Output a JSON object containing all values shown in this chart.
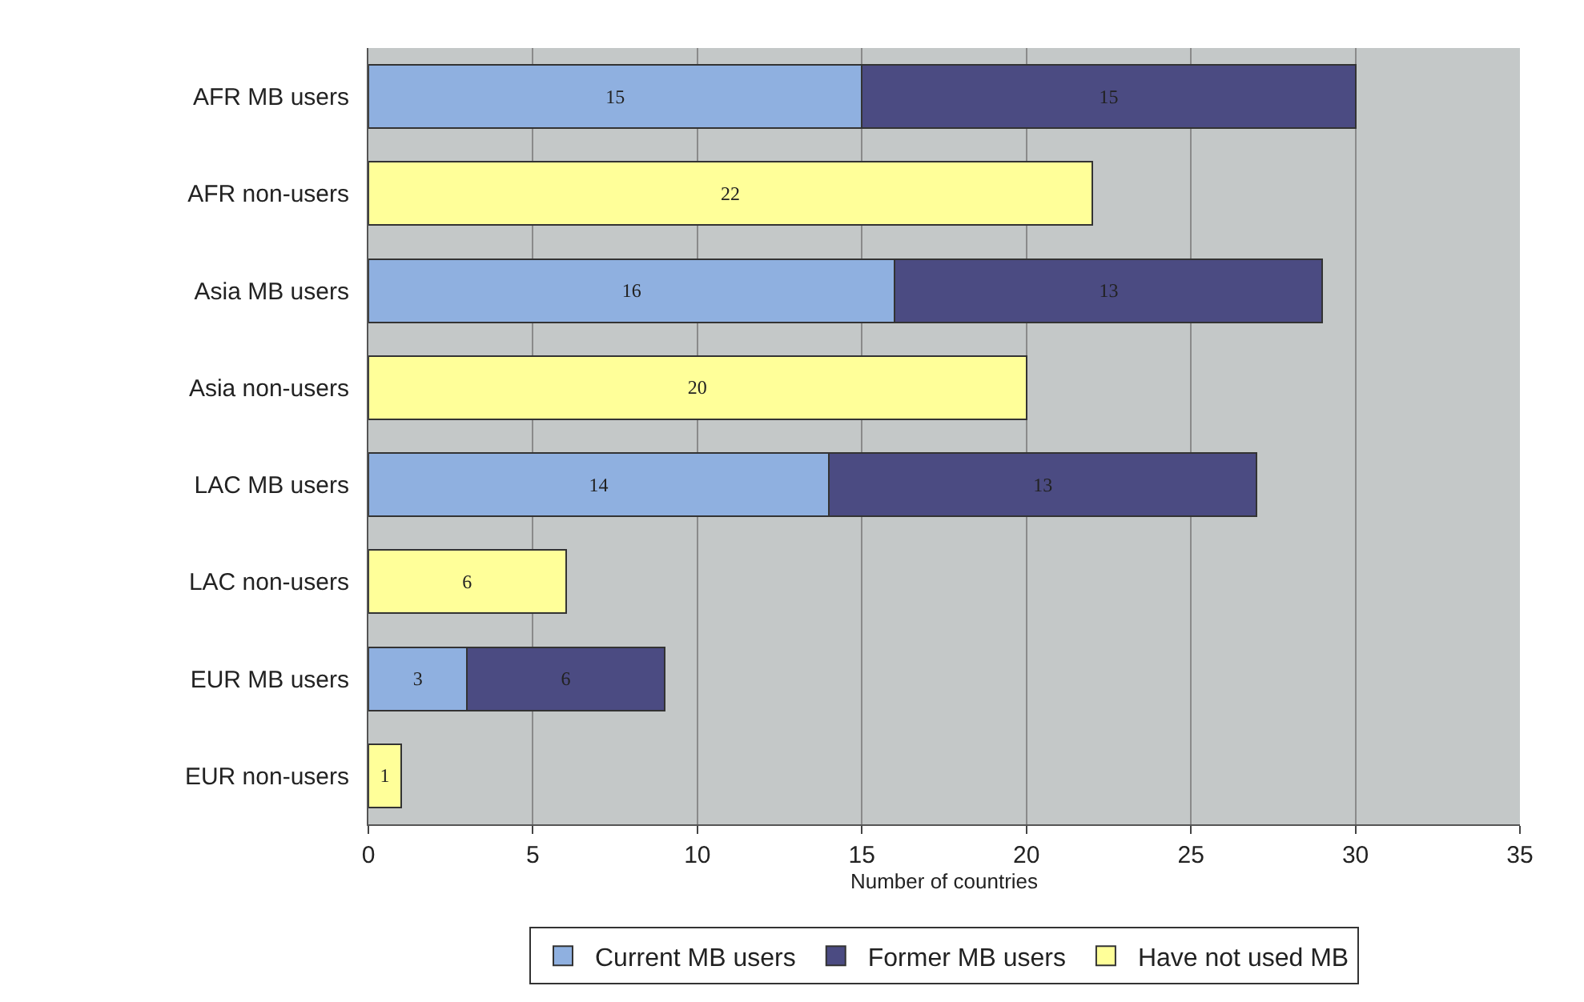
{
  "chart_data": {
    "type": "bar",
    "orientation": "horizontal",
    "stacked": true,
    "xlabel": "Number of countries",
    "categories": [
      "AFR MB users",
      "AFR non-users",
      "Asia MB users",
      "Asia non-users",
      "LAC MB users",
      "LAC non-users",
      "EUR MB users",
      "EUR non-users"
    ],
    "series": [
      {
        "name": "Current MB users",
        "color": "#8fb0e0",
        "values": [
          15,
          null,
          16,
          null,
          14,
          null,
          3,
          null
        ]
      },
      {
        "name": "Former MB users",
        "color": "#4b4b82",
        "values": [
          15,
          null,
          13,
          null,
          13,
          null,
          6,
          null
        ]
      },
      {
        "name": "Have not used MB",
        "color": "#ffff99",
        "values": [
          null,
          22,
          null,
          20,
          null,
          6,
          null,
          1
        ]
      }
    ],
    "xlim": [
      0,
      35
    ],
    "xticks": [
      0,
      5,
      10,
      15,
      20,
      25,
      30,
      35
    ],
    "grid": "x",
    "legend": "bottom",
    "data_labels": true
  }
}
